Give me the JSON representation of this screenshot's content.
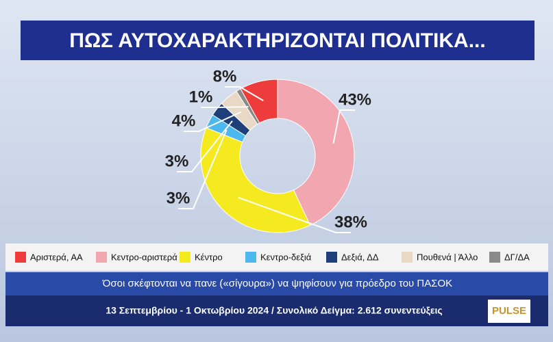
{
  "chart_data": {
    "type": "donut",
    "title": "ΠΩΣ ΑΥΤΟΧΑΡΑΚΤΗΡΙΖΟΝΤΑΙ ΠΟΛΙΤΙΚΑ...",
    "subtitle": "Όσοι σκέφτονται να πανε («σίγουρα») να ψηφίσουν για πρόεδρο του ΠΑΣΟΚ",
    "footer": "13 Σεπτεμβρίου - 1 Οκτωβρίου 2024 / Συνολικό Δείγμα: 2.612 συνεντεύξεις",
    "source": "PULSE",
    "categories": [
      "Αριστερά, ΑΑ",
      "Κεντρο-αριστερά",
      "Κέντρο",
      "Κεντρο-δεξιά",
      "Δεξιά, ΔΔ",
      "Πουθενά | Άλλο",
      "ΔΓ/ΔΑ"
    ],
    "values": [
      8,
      43,
      38,
      3,
      3,
      4,
      1
    ],
    "value_labels": [
      "8%",
      "43%",
      "38%",
      "3%",
      "3%",
      "4%",
      "1%"
    ],
    "colors": [
      "#ee3b3b",
      "#f2a7b0",
      "#f5ea1f",
      "#4cb8ee",
      "#1f3f7a",
      "#ead8c6",
      "#8a8a8a"
    ]
  }
}
